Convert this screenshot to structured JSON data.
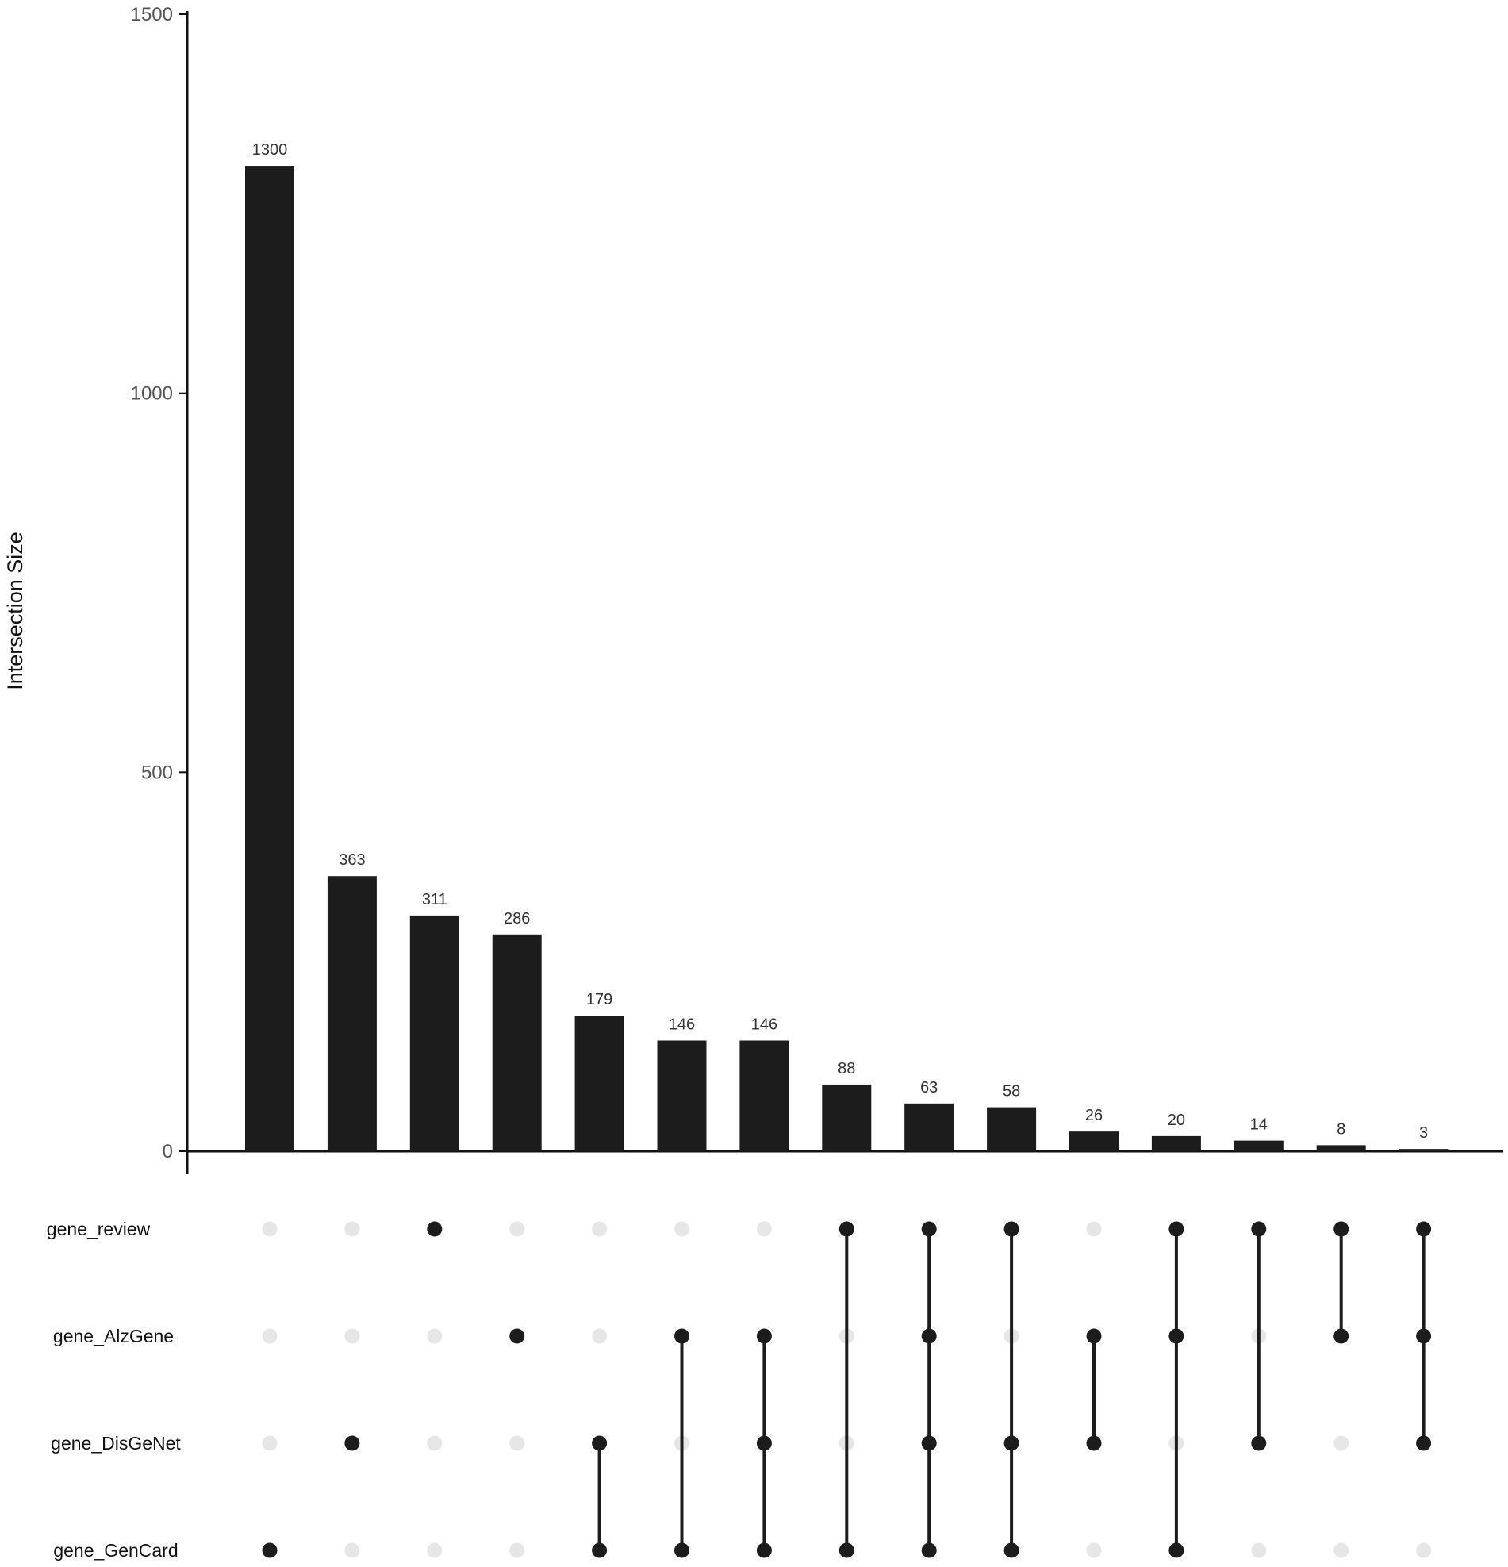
{
  "chart_data": {
    "type": "bar",
    "subtype": "upset",
    "ylabel": "Intersection Size",
    "ylim": [
      0,
      1500
    ],
    "yticks": [
      0,
      500,
      1000,
      1500
    ],
    "ytick_labels": [
      "0",
      "500",
      "1000",
      "1500"
    ],
    "grid": false,
    "sets": [
      "gene_review",
      "gene_AlzGene",
      "gene_DisGeNet",
      "gene_GenCard"
    ],
    "intersections": [
      {
        "value": 1300,
        "label": "1300",
        "members": [
          "gene_GenCard"
        ]
      },
      {
        "value": 363,
        "label": "363",
        "members": [
          "gene_DisGeNet"
        ]
      },
      {
        "value": 311,
        "label": "311",
        "members": [
          "gene_review"
        ]
      },
      {
        "value": 286,
        "label": "286",
        "members": [
          "gene_AlzGene"
        ]
      },
      {
        "value": 179,
        "label": "179",
        "members": [
          "gene_DisGeNet",
          "gene_GenCard"
        ]
      },
      {
        "value": 146,
        "label": "146",
        "members": [
          "gene_AlzGene",
          "gene_GenCard"
        ]
      },
      {
        "value": 146,
        "label": "146",
        "members": [
          "gene_AlzGene",
          "gene_DisGeNet",
          "gene_GenCard"
        ]
      },
      {
        "value": 88,
        "label": "88",
        "members": [
          "gene_review",
          "gene_GenCard"
        ]
      },
      {
        "value": 63,
        "label": "63",
        "members": [
          "gene_review",
          "gene_AlzGene",
          "gene_DisGeNet",
          "gene_GenCard"
        ]
      },
      {
        "value": 58,
        "label": "58",
        "members": [
          "gene_review",
          "gene_DisGeNet",
          "gene_GenCard"
        ]
      },
      {
        "value": 26,
        "label": "26",
        "members": [
          "gene_AlzGene",
          "gene_DisGeNet"
        ]
      },
      {
        "value": 20,
        "label": "20",
        "members": [
          "gene_review",
          "gene_AlzGene",
          "gene_GenCard"
        ]
      },
      {
        "value": 14,
        "label": "14",
        "members": [
          "gene_review",
          "gene_DisGeNet"
        ]
      },
      {
        "value": 8,
        "label": "8",
        "members": [
          "gene_review",
          "gene_AlzGene"
        ]
      },
      {
        "value": 3,
        "label": "3",
        "members": [
          "gene_review",
          "gene_AlzGene",
          "gene_DisGeNet"
        ]
      }
    ],
    "colors": {
      "bar": "#1c1c1c",
      "dot_active": "#1c1c1c",
      "dot_inactive": "#e6e6e6",
      "axis": "#111111"
    }
  }
}
